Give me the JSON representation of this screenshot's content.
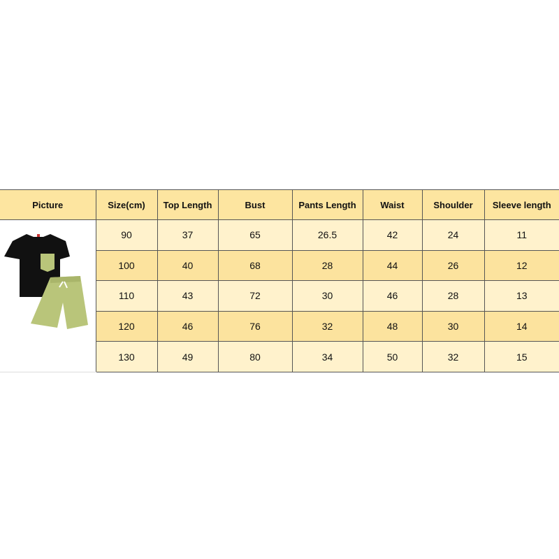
{
  "size_chart": {
    "headers": [
      "Picture",
      "Size(cm)",
      "Top Length",
      "Bust",
      "Pants Length",
      "Waist",
      "Shoulder",
      "Sleeve length"
    ],
    "rows": [
      [
        "90",
        "37",
        "65",
        "26.5",
        "42",
        "24",
        "11"
      ],
      [
        "100",
        "40",
        "68",
        "28",
        "44",
        "26",
        "12"
      ],
      [
        "110",
        "43",
        "72",
        "30",
        "46",
        "28",
        "13"
      ],
      [
        "120",
        "46",
        "76",
        "32",
        "48",
        "30",
        "14"
      ],
      [
        "130",
        "49",
        "80",
        "34",
        "50",
        "32",
        "15"
      ]
    ]
  },
  "product_image": {
    "description_icon": "black-tshirt-green-shorts-set",
    "shirt_color": "#111111",
    "shorts_color": "#b9c57a"
  },
  "colors": {
    "header": "#fde5a0",
    "row_light": "#fff2cc",
    "row_dark": "#fce39e"
  }
}
